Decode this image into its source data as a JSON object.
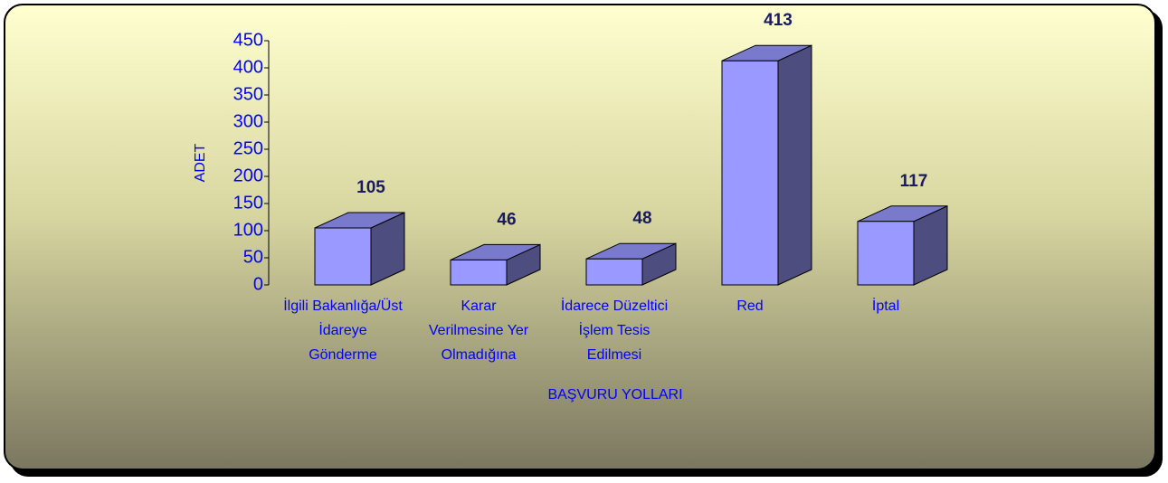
{
  "chart_data": {
    "type": "bar3d",
    "categories": [
      "İlgili Bakanlığa/Üst\nİdareye\nGönderme",
      "Karar\nVerilmesine Yer\nOlmadığına",
      "İdarece Düzeltici\nİşlem Tesis\nEdilmesi",
      "Red",
      "İptal"
    ],
    "values": [
      105,
      46,
      48,
      413,
      117
    ],
    "color": "#9999ff",
    "ylim": [
      0,
      450
    ],
    "yticks": [
      0,
      50,
      100,
      150,
      200,
      250,
      300,
      350,
      400,
      450
    ],
    "y_label": "ADET",
    "x_label": "BAŞVURU YOLLARI"
  }
}
